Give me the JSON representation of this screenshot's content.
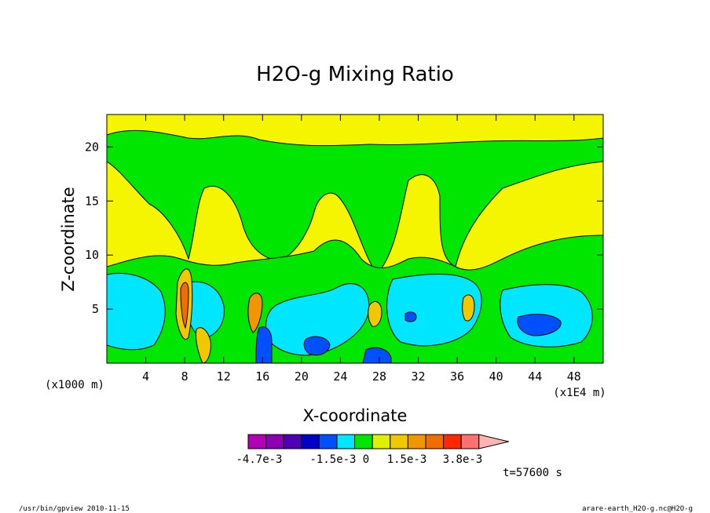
{
  "chart_data": {
    "type": "heatmap",
    "title": "H2O-g Mixing Ratio",
    "xlabel": "X-coordinate",
    "ylabel": "Z-coordinate",
    "x_unit": "(x1E4 m)",
    "y_unit": "(x1000 m)",
    "xlim": [
      0,
      51
    ],
    "ylim": [
      0,
      23
    ],
    "x_ticks": [
      4,
      8,
      12,
      16,
      20,
      24,
      28,
      32,
      36,
      40,
      44,
      48
    ],
    "y_ticks": [
      5,
      10,
      15,
      20
    ],
    "colorbar": {
      "labels": [
        "-4.7e-3",
        "-1.5e-3",
        "0",
        "1.5e-3",
        "3.8e-3"
      ],
      "colors": [
        "#b400b4",
        "#8c00b4",
        "#5000b4",
        "#0000c8",
        "#0050ff",
        "#00e6ff",
        "#00e600",
        "#dcf000",
        "#f0c800",
        "#f09600",
        "#f06e00",
        "#ff2800",
        "#ff7070",
        "#ffb4b4"
      ]
    },
    "background_color": "#f5f500",
    "time_label": "t=57600 s",
    "footer_left": "/usr/bin/gpview  2010-11-15",
    "footer_right": "arare-earth_H2O-g.nc@H2O-g"
  }
}
